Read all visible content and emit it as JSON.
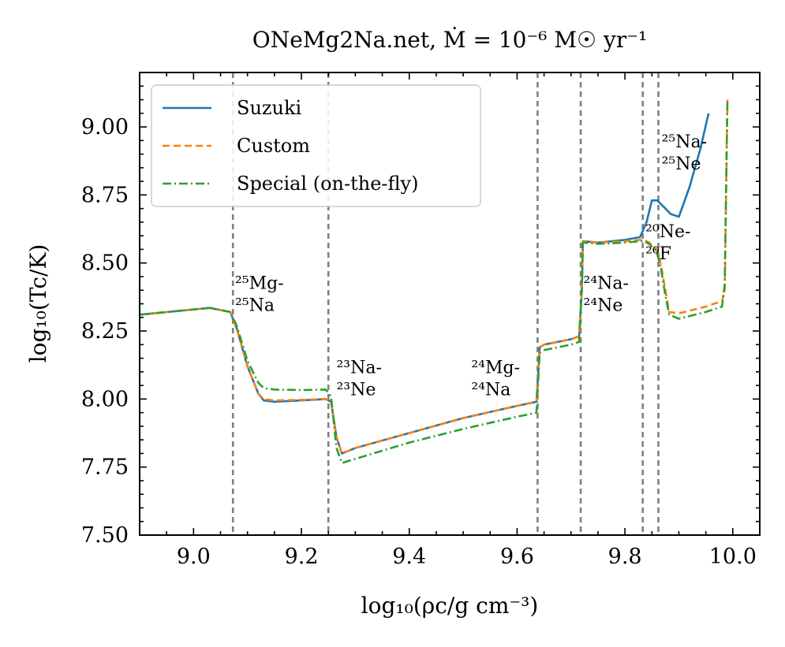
{
  "chart_data": {
    "type": "line",
    "title": "ONeMg2Na.net, Ṁ = 10⁻⁶ M☉ yr⁻¹",
    "xlabel": "log₁₀(ρc/g cm⁻³)",
    "ylabel": "log₁₀(Tc/K)",
    "xlim": [
      8.9,
      10.05
    ],
    "ylim": [
      7.5,
      9.2
    ],
    "xticks": [
      9.0,
      9.2,
      9.4,
      9.6,
      9.8,
      10.0
    ],
    "xtick_labels": [
      "9.0",
      "9.2",
      "9.4",
      "9.6",
      "9.8",
      "10.0"
    ],
    "yticks": [
      7.5,
      7.75,
      8.0,
      8.25,
      8.5,
      8.75,
      9.0
    ],
    "ytick_labels": [
      "7.50",
      "7.75",
      "8.00",
      "8.25",
      "8.50",
      "8.75",
      "9.00"
    ],
    "legend_position": "top-left",
    "transition_lines": [
      9.073,
      9.25,
      9.638,
      9.718,
      9.833,
      9.862
    ],
    "annotations": [
      {
        "top": "²⁵Mg-",
        "bottom": "²⁵Na",
        "x": 9.077,
        "y": 8.33
      },
      {
        "top": "²³Na-",
        "bottom": "²³Ne",
        "x": 9.265,
        "y": 8.02
      },
      {
        "top": "²⁴Mg-",
        "bottom": "²⁴Na",
        "x": 9.515,
        "y": 8.02
      },
      {
        "top": "²⁴Na-",
        "bottom": "²⁴Ne",
        "x": 9.723,
        "y": 8.33
      },
      {
        "top": "²⁰Ne-",
        "bottom": "²⁰F",
        "x": 9.838,
        "y": 8.52
      },
      {
        "top": "²⁵Na-",
        "bottom": "²⁵Ne",
        "x": 9.868,
        "y": 8.85
      }
    ],
    "series": [
      {
        "name": "Suzuki",
        "color": "#1f77b4",
        "dash": "solid",
        "x": [
          8.9,
          9.03,
          9.068,
          9.08,
          9.1,
          9.12,
          9.13,
          9.15,
          9.2,
          9.245,
          9.255,
          9.265,
          9.275,
          9.3,
          9.4,
          9.5,
          9.6,
          9.636,
          9.642,
          9.65,
          9.7,
          9.715,
          9.72,
          9.722,
          9.75,
          9.8,
          9.828,
          9.84,
          9.85,
          9.86,
          9.875,
          9.885,
          9.9,
          9.92,
          9.94,
          9.955
        ],
        "y": [
          8.31,
          8.335,
          8.32,
          8.26,
          8.12,
          8.02,
          7.995,
          7.99,
          7.995,
          8.0,
          7.99,
          7.86,
          7.8,
          7.82,
          7.875,
          7.93,
          7.975,
          7.99,
          8.19,
          8.2,
          8.22,
          8.23,
          8.4,
          8.58,
          8.575,
          8.585,
          8.595,
          8.65,
          8.73,
          8.73,
          8.7,
          8.68,
          8.67,
          8.78,
          8.92,
          9.05
        ]
      },
      {
        "name": "Custom",
        "color": "#ff7f0e",
        "dash": "dashed",
        "x": [
          8.9,
          9.03,
          9.068,
          9.08,
          9.1,
          9.12,
          9.13,
          9.15,
          9.2,
          9.245,
          9.255,
          9.265,
          9.275,
          9.3,
          9.4,
          9.5,
          9.6,
          9.636,
          9.642,
          9.65,
          9.7,
          9.715,
          9.72,
          9.722,
          9.75,
          9.8,
          9.828,
          9.835,
          9.845,
          9.858,
          9.866,
          9.875,
          9.882,
          9.9,
          9.95,
          9.98,
          9.985,
          9.99
        ],
        "y": [
          8.31,
          8.335,
          8.32,
          8.26,
          8.12,
          8.02,
          8.0,
          7.995,
          7.997,
          8.0,
          7.99,
          7.86,
          7.8,
          7.82,
          7.875,
          7.93,
          7.975,
          7.99,
          8.19,
          8.2,
          8.22,
          8.23,
          8.4,
          8.58,
          8.575,
          8.58,
          8.585,
          8.585,
          8.575,
          8.55,
          8.5,
          8.4,
          8.32,
          8.315,
          8.34,
          8.36,
          8.4,
          9.1
        ]
      },
      {
        "name": "Special (on-the-fly)",
        "color": "#2ca02c",
        "dash": "dashdot",
        "x": [
          8.9,
          9.03,
          9.068,
          9.08,
          9.1,
          9.12,
          9.13,
          9.15,
          9.2,
          9.245,
          9.255,
          9.265,
          9.275,
          9.3,
          9.4,
          9.5,
          9.6,
          9.636,
          9.642,
          9.65,
          9.7,
          9.715,
          9.72,
          9.722,
          9.75,
          9.8,
          9.828,
          9.835,
          9.845,
          9.858,
          9.866,
          9.875,
          9.882,
          9.9,
          9.95,
          9.98,
          9.985,
          9.99
        ],
        "y": [
          8.31,
          8.335,
          8.32,
          8.27,
          8.14,
          8.06,
          8.04,
          8.035,
          8.033,
          8.035,
          8.01,
          7.82,
          7.765,
          7.78,
          7.84,
          7.89,
          7.935,
          7.95,
          8.17,
          8.18,
          8.2,
          8.21,
          8.4,
          8.575,
          8.57,
          8.575,
          8.58,
          8.58,
          8.57,
          8.545,
          8.49,
          8.38,
          8.31,
          8.295,
          8.32,
          8.34,
          8.42,
          9.1
        ]
      }
    ]
  }
}
